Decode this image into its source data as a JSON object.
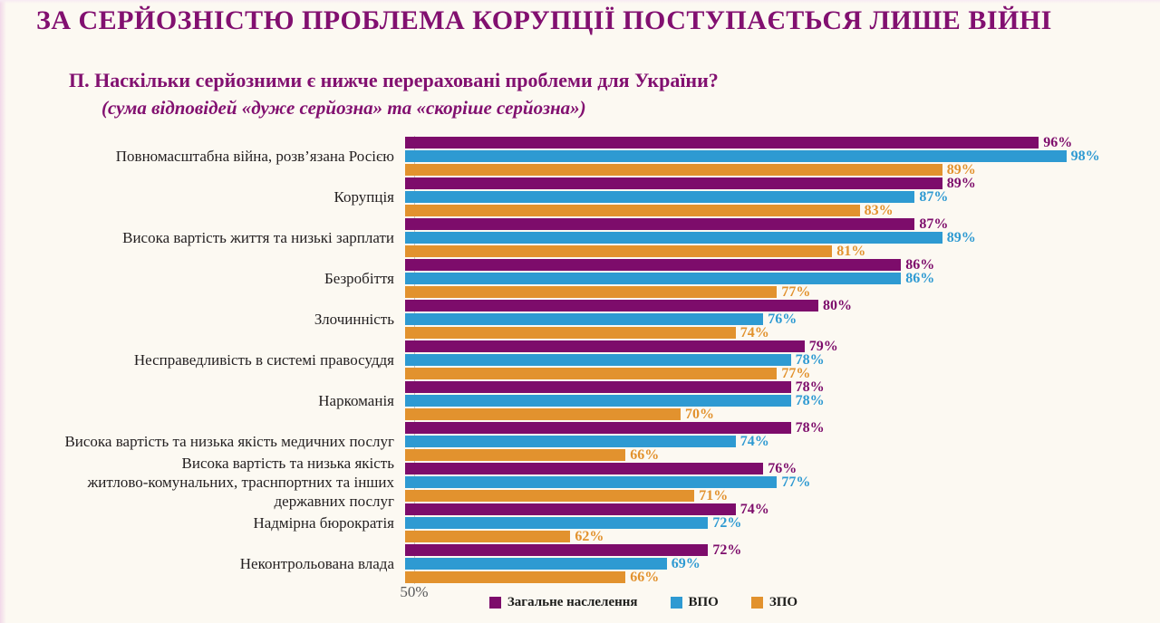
{
  "title": "ЗА СЕРЙОЗНІСТЮ ПРОБЛЕМА КОРУПЦІЇ ПОСТУПАЄТЬСЯ ЛИШЕ ВІЙНІ",
  "question": {
    "line1": "П. Наскільки серйозними є нижче перераховані проблеми для України?",
    "line2": "(сума відповідей «дуже серйозна» та «скоріше серйозна»)"
  },
  "colors": {
    "title_text": "#821070",
    "category_text": "#231f20",
    "axis_line": "#c9c5bc",
    "tick_text": "#58595b",
    "background": "#FCF9F2"
  },
  "chart_data": {
    "type": "bar",
    "orientation": "horizontal",
    "title": "ЗА СЕРЙОЗНІСТЮ ПРОБЛЕМА КОРУПЦІЇ ПОСТУПАЄТЬСЯ ЛИШЕ ВІЙНІ",
    "subtitle": "П. Наскільки серйозними є нижче перераховані проблеми для України? (сума відповідей «дуже серйозна» та «скоріше серйозна»)",
    "value_suffix": "%",
    "xlim": [
      50,
      100
    ],
    "x_axis": {
      "tick_label": "50%",
      "min": 50,
      "max": 100
    },
    "legend_position": "bottom",
    "grid": false,
    "categories": [
      "Повномасштабна війна, розв’язана Росією",
      "Корупція",
      "Висока вартість життя та низькі зарплати",
      "Безробіття",
      "Злочинність",
      "Несправедливість в системі правосуддя",
      "Наркоманія",
      "Висока вартість та низька якість медичних послуг",
      "Висока вартість та низька якість\nжитлово-комунальних, траснпортних та інших\nдержавних послуг",
      "Надмірна бюрократія",
      "Неконтрольована влада"
    ],
    "series": [
      {
        "name": "Загальне наслелення",
        "color": "#7D0C6B",
        "values": [
          96,
          89,
          87,
          86,
          80,
          79,
          78,
          78,
          76,
          74,
          72
        ]
      },
      {
        "name": "ВПО",
        "color": "#2E9AD2",
        "values": [
          98,
          87,
          89,
          86,
          76,
          78,
          78,
          74,
          77,
          72,
          69
        ]
      },
      {
        "name": "ЗПО",
        "color": "#E2922E",
        "values": [
          89,
          83,
          81,
          77,
          74,
          77,
          70,
          66,
          71,
          62,
          66
        ]
      }
    ]
  }
}
